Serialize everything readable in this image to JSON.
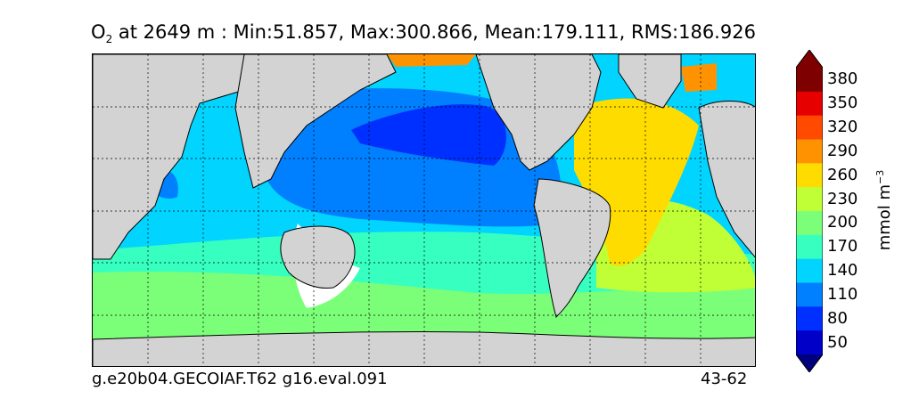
{
  "title": {
    "variable": "O",
    "subscript": "2",
    "text": " at 2649 m : Min:51.857, Max:300.866, Mean:179.111, RMS:186.926"
  },
  "colorbar": {
    "levels": [
      "380",
      "350",
      "320",
      "290",
      "260",
      "230",
      "200",
      "170",
      "140",
      "110",
      "80",
      "50"
    ],
    "units_base": "mmol m",
    "units_exp": "−3",
    "colors": {
      "over": "#7f0000",
      "c380": "#7f0000",
      "c350": "#e60000",
      "c320": "#ff4a00",
      "c290": "#ff9200",
      "c260": "#ffdc00",
      "c230": "#c0ff36",
      "c200": "#7cff78",
      "c170": "#36ffc0",
      "c140": "#00d4ff",
      "c110": "#0080ff",
      "c80": "#0030ff",
      "c50": "#0000c8",
      "under": "#00007f"
    }
  },
  "map_colors": {
    "land": "#d3d3d3",
    "nodata": "#ffffff",
    "north_pacific": "#0030ff",
    "pacific": "#0080ff",
    "subtropical_south": "#00d4ff",
    "southern_band": "#36ffc0",
    "southern_ocean": "#7cff78",
    "south_atlantic": "#c0ff36",
    "north_atlantic": "#ffdc00",
    "arctic": "#ff9200"
  },
  "footer": {
    "left": "g.e20b04.GECOIAF.T62 g16.eval.091",
    "right": "43-62"
  }
}
